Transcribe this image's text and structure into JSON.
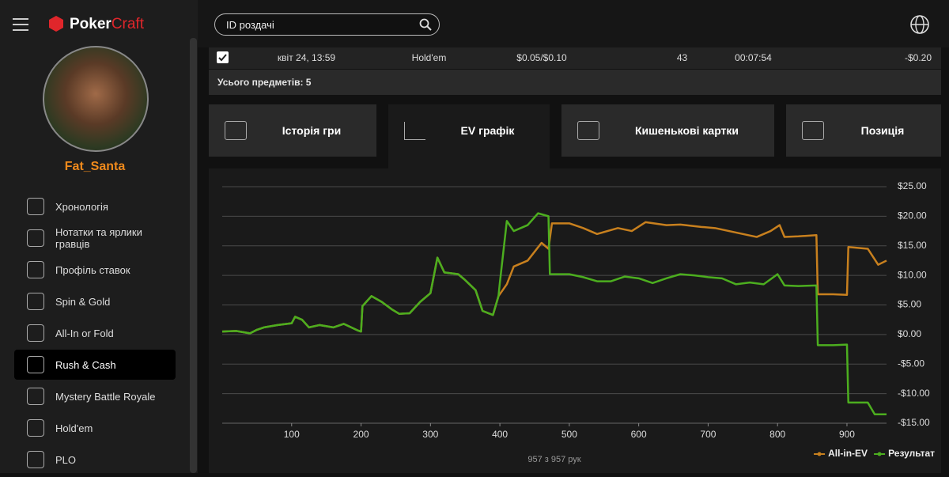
{
  "header": {
    "logo_1": "Poker",
    "logo_2": "Craft",
    "search_placeholder": "ID роздачі"
  },
  "sidebar": {
    "username": "Fat_Santa",
    "menu": [
      "Хронологія",
      "Нотатки та ярлики гравців",
      "Профіль ставок",
      "Spin & Gold",
      "All-In or Fold",
      "Rush & Cash",
      "Mystery Battle Royale",
      "Hold'em",
      "PLO"
    ],
    "active_item": 5
  },
  "table": {
    "rows": [
      [
        "квіт 24, 13:59",
        "Hold'em",
        "$0.05/$0.10",
        43,
        "00:07:54",
        "-$0.20"
      ]
    ],
    "total": "Усього предметів: 5"
  },
  "tabs": {
    "items": [
      "Історія гри",
      "EV графік",
      "Кишенькові картки",
      "Позиція"
    ],
    "active": 1
  },
  "chart_data": {
    "type": "line",
    "footer": "957 з 957 рук",
    "legend": "bottom-right",
    "grid": true,
    "xlim": [
      0,
      957
    ],
    "xticks": [
      100,
      200,
      300,
      400,
      500,
      600,
      700,
      800,
      900
    ],
    "ylim": [
      -15,
      25
    ],
    "yticks": [
      {
        "value": 25,
        "label": "$25.00"
      },
      {
        "value": 20,
        "label": "$20.00"
      },
      {
        "value": 15,
        "label": "$15.00"
      },
      {
        "value": 10,
        "label": "$10.00"
      },
      {
        "value": 5,
        "label": "$5.00"
      },
      {
        "value": 0,
        "label": "$0.00"
      },
      {
        "value": -5,
        "label": "-$5.00"
      },
      {
        "value": -10,
        "label": "-$10.00"
      },
      {
        "value": -15,
        "label": "-$15.00"
      }
    ],
    "series": [
      {
        "name": "All-in-EV",
        "color": "#c8801e",
        "x": [
          0,
          20,
          40,
          50,
          60,
          80,
          100,
          105,
          115,
          125,
          140,
          160,
          175,
          195,
          200,
          202,
          215,
          230,
          245,
          255,
          270,
          285,
          300,
          310,
          320,
          340,
          350,
          365,
          375,
          390,
          398,
          410,
          420,
          440,
          460,
          470,
          475,
          500,
          520,
          540,
          570,
          590,
          610,
          640,
          660,
          690,
          710,
          730,
          750,
          770,
          790,
          803,
          810,
          830,
          856,
          858,
          880,
          900,
          902,
          930,
          945,
          957
        ],
        "values": [
          0.5,
          0.6,
          0.2,
          0.8,
          1.2,
          1.6,
          1.9,
          3.0,
          2.5,
          1.2,
          1.6,
          1.2,
          1.8,
          0.7,
          0.5,
          4.8,
          6.5,
          5.5,
          4.2,
          3.5,
          3.6,
          5.5,
          7.0,
          13,
          10.5,
          10.2,
          9.2,
          7.5,
          4,
          3.3,
          6.5,
          8.5,
          11.5,
          12.5,
          15.5,
          14.5,
          18.8,
          18.8,
          18,
          17,
          18,
          17.5,
          19,
          18.5,
          18.6,
          18.2,
          18.0,
          17.5,
          17,
          16.5,
          17.5,
          18.5,
          16.5,
          16.6,
          16.8,
          6.8,
          6.8,
          6.7,
          14.8,
          14.5,
          11.8,
          12.5
        ]
      },
      {
        "name": "Результат",
        "color": "#4cae1f",
        "x": [
          0,
          20,
          40,
          50,
          60,
          80,
          100,
          105,
          115,
          125,
          140,
          160,
          175,
          195,
          200,
          202,
          215,
          230,
          245,
          255,
          270,
          285,
          300,
          310,
          320,
          340,
          350,
          365,
          375,
          390,
          398,
          400,
          410,
          420,
          440,
          455,
          470,
          472,
          500,
          520,
          540,
          560,
          580,
          600,
          620,
          640,
          660,
          680,
          700,
          720,
          740,
          760,
          780,
          800,
          810,
          830,
          856,
          858,
          880,
          900,
          902,
          930,
          940,
          957
        ],
        "values": [
          0.5,
          0.6,
          0.2,
          0.8,
          1.2,
          1.6,
          1.9,
          3.0,
          2.5,
          1.2,
          1.6,
          1.2,
          1.8,
          0.7,
          0.5,
          4.8,
          6.5,
          5.5,
          4.2,
          3.5,
          3.6,
          5.5,
          7.0,
          13,
          10.5,
          10.2,
          9.2,
          7.5,
          4,
          3.3,
          6.5,
          8.8,
          19.2,
          17.5,
          18.5,
          20.5,
          20,
          10.2,
          10.2,
          9.7,
          9.0,
          9.0,
          9.8,
          9.5,
          8.7,
          9.5,
          10.2,
          10,
          9.7,
          9.5,
          8.5,
          8.8,
          8.5,
          10.2,
          8.3,
          8.2,
          8.3,
          -1.8,
          -1.8,
          -1.7,
          -11.5,
          -11.5,
          -13.5,
          -13.5
        ]
      }
    ]
  }
}
